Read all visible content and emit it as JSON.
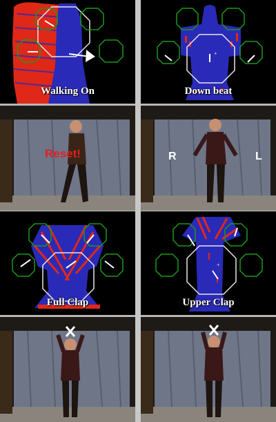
{
  "panels": [
    {
      "caption": "Walking On",
      "overlay": "Reset!"
    },
    {
      "caption": "Down beat",
      "left_label": "R",
      "right_label": "L"
    },
    {
      "caption": "Full Clap"
    },
    {
      "caption": "Upper Clap"
    }
  ],
  "colors": {
    "body_blue": "#2a2ab8",
    "edge_red": "#e02818",
    "box_green": "#1a9a1a",
    "box_white": "#e8e8e8"
  }
}
